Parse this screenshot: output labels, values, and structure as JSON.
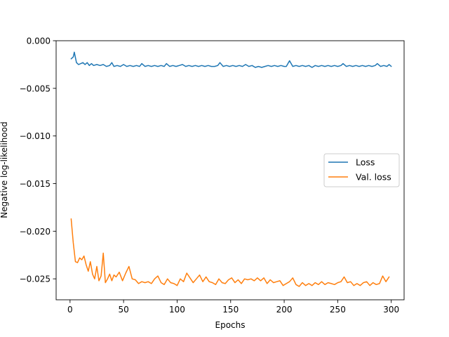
{
  "chart_data": {
    "type": "line",
    "xlabel": "Epochs",
    "ylabel": "Negative log-likelihood",
    "xlim": [
      -13,
      312
    ],
    "ylim": [
      -0.0272,
      0.0
    ],
    "xticks": [
      0,
      50,
      100,
      150,
      200,
      250,
      300
    ],
    "yticks": [
      0.0,
      -0.005,
      -0.01,
      -0.015,
      -0.02,
      -0.025
    ],
    "ytick_labels": [
      "0.000",
      "−0.005",
      "−0.010",
      "−0.015",
      "−0.020",
      "−0.025"
    ],
    "legend_position": "center-right",
    "grid": false,
    "series": [
      {
        "name": "Loss",
        "color": "#1f77b4",
        "points": [
          [
            1,
            -0.0019
          ],
          [
            3,
            -0.0017
          ],
          [
            4,
            -0.0012
          ],
          [
            6,
            -0.0023
          ],
          [
            8,
            -0.0025
          ],
          [
            10,
            -0.0024
          ],
          [
            12,
            -0.0023
          ],
          [
            14,
            -0.0025
          ],
          [
            16,
            -0.0023
          ],
          [
            18,
            -0.0026
          ],
          [
            20,
            -0.0024
          ],
          [
            22,
            -0.0026
          ],
          [
            25,
            -0.0025
          ],
          [
            28,
            -0.0026
          ],
          [
            31,
            -0.0025
          ],
          [
            34,
            -0.0027
          ],
          [
            37,
            -0.0026
          ],
          [
            39,
            -0.0023
          ],
          [
            41,
            -0.0027
          ],
          [
            44,
            -0.0026
          ],
          [
            47,
            -0.0027
          ],
          [
            50,
            -0.0025
          ],
          [
            53,
            -0.0027
          ],
          [
            56,
            -0.0026
          ],
          [
            59,
            -0.0027
          ],
          [
            62,
            -0.0026
          ],
          [
            65,
            -0.0027
          ],
          [
            67,
            -0.0024
          ],
          [
            70,
            -0.0027
          ],
          [
            73,
            -0.0026
          ],
          [
            76,
            -0.0027
          ],
          [
            79,
            -0.0026
          ],
          [
            82,
            -0.0027
          ],
          [
            85,
            -0.0026
          ],
          [
            88,
            -0.0027
          ],
          [
            90,
            -0.0024
          ],
          [
            93,
            -0.0027
          ],
          [
            96,
            -0.0026
          ],
          [
            99,
            -0.0027
          ],
          [
            102,
            -0.0026
          ],
          [
            105,
            -0.0025
          ],
          [
            108,
            -0.0027
          ],
          [
            111,
            -0.0026
          ],
          [
            114,
            -0.0027
          ],
          [
            117,
            -0.0026
          ],
          [
            120,
            -0.0027
          ],
          [
            123,
            -0.0026
          ],
          [
            126,
            -0.0027
          ],
          [
            129,
            -0.0026
          ],
          [
            132,
            -0.0027
          ],
          [
            135,
            -0.0027
          ],
          [
            138,
            -0.0026
          ],
          [
            140,
            -0.0023
          ],
          [
            143,
            -0.0027
          ],
          [
            146,
            -0.0026
          ],
          [
            149,
            -0.0027
          ],
          [
            152,
            -0.0026
          ],
          [
            155,
            -0.0027
          ],
          [
            158,
            -0.0026
          ],
          [
            161,
            -0.0027
          ],
          [
            164,
            -0.0025
          ],
          [
            167,
            -0.0027
          ],
          [
            170,
            -0.0026
          ],
          [
            173,
            -0.0028
          ],
          [
            176,
            -0.0027
          ],
          [
            179,
            -0.0028
          ],
          [
            182,
            -0.0027
          ],
          [
            185,
            -0.0026
          ],
          [
            188,
            -0.0027
          ],
          [
            191,
            -0.0026
          ],
          [
            194,
            -0.0027
          ],
          [
            197,
            -0.0026
          ],
          [
            200,
            -0.0027
          ],
          [
            202,
            -0.0027
          ],
          [
            205,
            -0.0021
          ],
          [
            208,
            -0.0027
          ],
          [
            211,
            -0.0026
          ],
          [
            214,
            -0.0027
          ],
          [
            217,
            -0.0026
          ],
          [
            220,
            -0.0027
          ],
          [
            223,
            -0.0026
          ],
          [
            226,
            -0.0028
          ],
          [
            229,
            -0.0026
          ],
          [
            232,
            -0.0027
          ],
          [
            235,
            -0.0026
          ],
          [
            238,
            -0.0027
          ],
          [
            241,
            -0.0026
          ],
          [
            244,
            -0.0027
          ],
          [
            247,
            -0.0026
          ],
          [
            250,
            -0.0027
          ],
          [
            253,
            -0.0026
          ],
          [
            255,
            -0.0024
          ],
          [
            258,
            -0.0027
          ],
          [
            261,
            -0.0026
          ],
          [
            264,
            -0.0027
          ],
          [
            267,
            -0.0026
          ],
          [
            270,
            -0.0027
          ],
          [
            273,
            -0.0026
          ],
          [
            276,
            -0.0027
          ],
          [
            279,
            -0.0026
          ],
          [
            282,
            -0.0027
          ],
          [
            285,
            -0.0026
          ],
          [
            287,
            -0.0024
          ],
          [
            290,
            -0.0027
          ],
          [
            293,
            -0.0026
          ],
          [
            296,
            -0.0027
          ],
          [
            298,
            -0.0025
          ],
          [
            300,
            -0.0027
          ]
        ]
      },
      {
        "name": "Val. loss",
        "color": "#ff7f0e",
        "points": [
          [
            1,
            -0.0187
          ],
          [
            3,
            -0.0212
          ],
          [
            5,
            -0.0232
          ],
          [
            7,
            -0.0233
          ],
          [
            9,
            -0.0228
          ],
          [
            11,
            -0.023
          ],
          [
            13,
            -0.0226
          ],
          [
            15,
            -0.0235
          ],
          [
            17,
            -0.0242
          ],
          [
            19,
            -0.0232
          ],
          [
            21,
            -0.0245
          ],
          [
            23,
            -0.025
          ],
          [
            25,
            -0.0237
          ],
          [
            27,
            -0.0252
          ],
          [
            29,
            -0.0247
          ],
          [
            31,
            -0.0223
          ],
          [
            33,
            -0.0254
          ],
          [
            35,
            -0.025
          ],
          [
            37,
            -0.0245
          ],
          [
            39,
            -0.0252
          ],
          [
            41,
            -0.0246
          ],
          [
            43,
            -0.0248
          ],
          [
            46,
            -0.0243
          ],
          [
            49,
            -0.0252
          ],
          [
            52,
            -0.0244
          ],
          [
            55,
            -0.0237
          ],
          [
            58,
            -0.025
          ],
          [
            61,
            -0.0251
          ],
          [
            64,
            -0.0255
          ],
          [
            67,
            -0.0253
          ],
          [
            70,
            -0.0254
          ],
          [
            73,
            -0.0253
          ],
          [
            76,
            -0.0255
          ],
          [
            79,
            -0.025
          ],
          [
            82,
            -0.0247
          ],
          [
            85,
            -0.0254
          ],
          [
            88,
            -0.0256
          ],
          [
            91,
            -0.025
          ],
          [
            94,
            -0.0254
          ],
          [
            97,
            -0.0255
          ],
          [
            100,
            -0.0257
          ],
          [
            103,
            -0.025
          ],
          [
            106,
            -0.0253
          ],
          [
            109,
            -0.0244
          ],
          [
            112,
            -0.0249
          ],
          [
            115,
            -0.0254
          ],
          [
            118,
            -0.025
          ],
          [
            121,
            -0.0246
          ],
          [
            124,
            -0.0253
          ],
          [
            127,
            -0.0248
          ],
          [
            130,
            -0.0253
          ],
          [
            133,
            -0.0254
          ],
          [
            136,
            -0.0256
          ],
          [
            139,
            -0.025
          ],
          [
            142,
            -0.0254
          ],
          [
            145,
            -0.0255
          ],
          [
            148,
            -0.0251
          ],
          [
            151,
            -0.0249
          ],
          [
            154,
            -0.0254
          ],
          [
            157,
            -0.0251
          ],
          [
            160,
            -0.0255
          ],
          [
            163,
            -0.025
          ],
          [
            166,
            -0.0251
          ],
          [
            169,
            -0.025
          ],
          [
            172,
            -0.0252
          ],
          [
            175,
            -0.0249
          ],
          [
            178,
            -0.0252
          ],
          [
            181,
            -0.0249
          ],
          [
            184,
            -0.0255
          ],
          [
            187,
            -0.0251
          ],
          [
            190,
            -0.0254
          ],
          [
            193,
            -0.0253
          ],
          [
            196,
            -0.0252
          ],
          [
            199,
            -0.0257
          ],
          [
            202,
            -0.0255
          ],
          [
            205,
            -0.0253
          ],
          [
            208,
            -0.0249
          ],
          [
            211,
            -0.0256
          ],
          [
            214,
            -0.0258
          ],
          [
            217,
            -0.0254
          ],
          [
            220,
            -0.0257
          ],
          [
            223,
            -0.0255
          ],
          [
            226,
            -0.0257
          ],
          [
            229,
            -0.0254
          ],
          [
            232,
            -0.0256
          ],
          [
            235,
            -0.0253
          ],
          [
            238,
            -0.0256
          ],
          [
            241,
            -0.0254
          ],
          [
            244,
            -0.0255
          ],
          [
            247,
            -0.0256
          ],
          [
            250,
            -0.0254
          ],
          [
            253,
            -0.0253
          ],
          [
            256,
            -0.0248
          ],
          [
            259,
            -0.0254
          ],
          [
            262,
            -0.0253
          ],
          [
            265,
            -0.0257
          ],
          [
            268,
            -0.0255
          ],
          [
            271,
            -0.0257
          ],
          [
            274,
            -0.0254
          ],
          [
            277,
            -0.0253
          ],
          [
            280,
            -0.0257
          ],
          [
            283,
            -0.0254
          ],
          [
            286,
            -0.0256
          ],
          [
            289,
            -0.0255
          ],
          [
            292,
            -0.0247
          ],
          [
            295,
            -0.0253
          ],
          [
            298,
            -0.0248
          ]
        ]
      }
    ]
  }
}
